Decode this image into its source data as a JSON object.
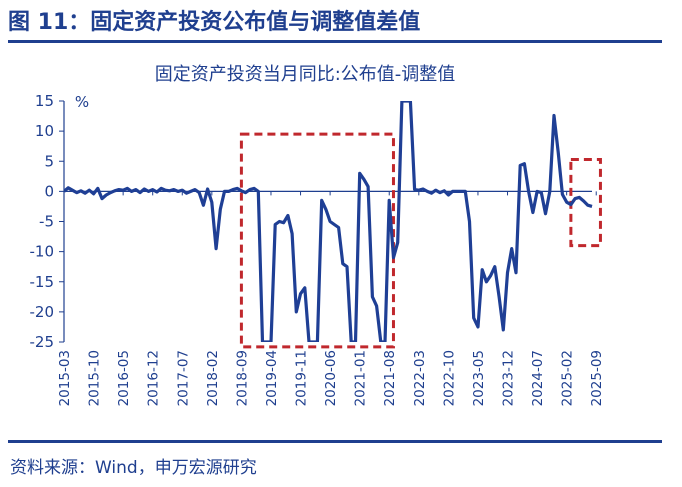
{
  "figure_title": "图 11：固定资产投资公布值与调整值差值",
  "source": "资料来源：Wind，申万宏源研究",
  "colors": {
    "line": "#1f3f95",
    "box": "#c0282d",
    "text": "#1f3f8f"
  },
  "chart_data": {
    "type": "line",
    "title": "固定资产投资当月同比:公布值-调整值",
    "ylabel": "%",
    "xlabel": "",
    "ylim": [
      -25,
      15
    ],
    "yticks": [
      15,
      10,
      5,
      0,
      -5,
      -10,
      -15,
      -20,
      -25
    ],
    "xticks": [
      "2015-03",
      "2015-10",
      "2016-05",
      "2016-12",
      "2017-07",
      "2018-02",
      "2018-09",
      "2019-04",
      "2019-11",
      "2020-06",
      "2021-01",
      "2021-08",
      "2022-03",
      "2022-10",
      "2023-05",
      "2023-12",
      "2024-07",
      "2025-02",
      "2025-09"
    ],
    "grid": false,
    "legend": "none",
    "series": [
      {
        "x_start": "2015-03",
        "values": [
          0,
          0.6,
          0.2,
          -0.2,
          0.1,
          -0.3,
          0.2,
          -0.4,
          0.5,
          -1.2,
          -0.6,
          -0.2,
          0.1,
          0.3,
          0.2,
          0.5,
          0,
          0.3,
          -0.2,
          0.4,
          0,
          0.3,
          -0.1,
          0.5,
          0.2,
          0.1,
          0.3,
          0,
          0.2,
          -0.3,
          0,
          0.3,
          -0.2,
          -2.3,
          0.4,
          -1.8,
          -9.5,
          -3,
          0,
          0,
          0.3,
          0.5,
          0.1,
          -0.2,
          0.3,
          0.5,
          0,
          -25,
          -25,
          -25,
          -5.5,
          -5,
          -5.2,
          -4,
          -7,
          -20,
          -17,
          -16,
          -25,
          -25,
          -25,
          -1.5,
          -3,
          -5,
          -5.5,
          -6,
          -12,
          -12.5,
          -25,
          -25,
          3,
          2,
          0.8,
          -17.5,
          -19,
          -25,
          -25,
          -1.5,
          -11,
          -8.5,
          15,
          15,
          15,
          0.3,
          0.2,
          0.4,
          0,
          -0.3,
          0.2,
          -0.2,
          0.1,
          -0.6,
          0,
          0,
          0,
          0,
          -5,
          -21,
          -22.5,
          -13,
          -15,
          -14,
          -12.5,
          -17.5,
          -23,
          -13.5,
          -9.5,
          -13.5,
          4.3,
          4.6,
          0,
          -3.5,
          0,
          -0.2,
          -3.7,
          0,
          12.6,
          6.5,
          -0.5,
          -1.8,
          -2.2,
          -1.2,
          -1,
          -1.6,
          -2.3,
          -2.5
        ]
      }
    ],
    "annotations": [
      {
        "type": "dashed-box",
        "from": "2018-09",
        "to": "2021-09",
        "y_from": -25.8,
        "y_to": 9.5
      },
      {
        "type": "dashed-box",
        "from": "2025-03",
        "to": "2025-10",
        "y_from": -9,
        "y_to": 5.3
      }
    ]
  }
}
